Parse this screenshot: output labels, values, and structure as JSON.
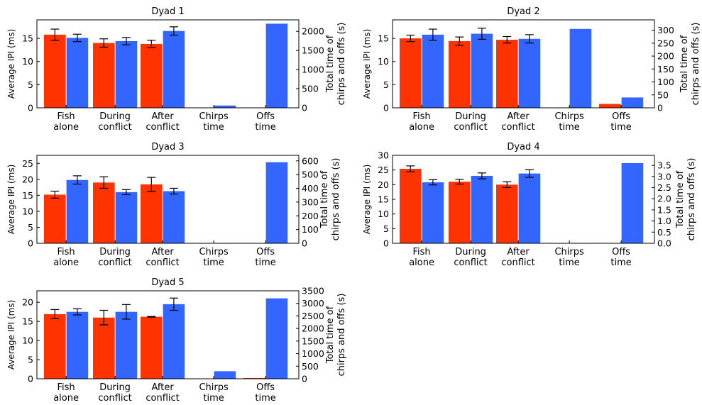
{
  "colors": {
    "fish_a": "#ff3300",
    "fish_b": "#3366ff",
    "error_bar": "#000000"
  },
  "chart_data": [
    {
      "type": "bar",
      "title": "Dyad 1",
      "categories": [
        "Fish\nalone",
        "During\nconflict",
        "After\nconflict"
      ],
      "ylabel": "Average IPI (ms)",
      "ylim": [
        0,
        19
      ],
      "yticks": [
        0,
        5,
        10,
        15
      ],
      "series": [
        {
          "values": [
            15.8,
            14.0,
            13.8
          ],
          "errors": [
            1.2,
            0.9,
            0.8
          ]
        },
        {
          "values": [
            15.1,
            14.4,
            16.6
          ],
          "errors": [
            0.8,
            0.8,
            0.9
          ]
        }
      ],
      "right_axis": {
        "ylabel": "Total time of\nchirps and offs (s)",
        "ylim": [
          0,
          2300
        ],
        "yticks": [
          0,
          500,
          1000,
          1500,
          2000
        ],
        "categories": [
          "Chirps\ntime",
          "Offs\ntime"
        ],
        "fish_a": [
          0,
          0
        ],
        "fish_b": [
          60,
          2200
        ]
      }
    },
    {
      "type": "bar",
      "title": "Dyad 2",
      "categories": [
        "Fish\nalone",
        "During\nconflict",
        "After\nconflict"
      ],
      "ylabel": "Average IPI (ms)",
      "ylim": [
        0,
        19
      ],
      "yticks": [
        0,
        5,
        10,
        15
      ],
      "series": [
        {
          "values": [
            15.0,
            14.4,
            14.7
          ],
          "errors": [
            0.7,
            0.9,
            0.7
          ]
        },
        {
          "values": [
            15.8,
            16.0,
            14.9
          ],
          "errors": [
            1.2,
            1.2,
            0.9
          ]
        }
      ],
      "right_axis": {
        "ylabel": "Total time of\nchirps and offs (s)",
        "ylim": [
          0,
          340
        ],
        "yticks": [
          0,
          50,
          100,
          150,
          200,
          250,
          300
        ],
        "categories": [
          "Chirps\ntime",
          "Offs\ntime"
        ],
        "fish_a": [
          0,
          15
        ],
        "fish_b": [
          305,
          40
        ]
      }
    },
    {
      "type": "bar",
      "title": "Dyad 3",
      "categories": [
        "Fish\nalone",
        "During\nconflict",
        "After\nconflict"
      ],
      "ylabel": "Average IPI (ms)",
      "ylim": [
        0,
        27.5
      ],
      "yticks": [
        0,
        5,
        10,
        15,
        20,
        25
      ],
      "series": [
        {
          "values": [
            15.2,
            19.0,
            18.4
          ],
          "errors": [
            1.1,
            1.8,
            2.2
          ]
        },
        {
          "values": [
            19.8,
            16.0,
            16.3
          ],
          "errors": [
            1.3,
            0.8,
            0.9
          ]
        }
      ],
      "right_axis": {
        "ylabel": "Total time of\nchirps and offs (s)",
        "ylim": [
          0,
          640
        ],
        "yticks": [
          0,
          100,
          200,
          300,
          400,
          500,
          600
        ],
        "categories": [
          "Chirps\ntime",
          "Offs\ntime"
        ],
        "fish_a": [
          0,
          2
        ],
        "fish_b": [
          1,
          590
        ]
      }
    },
    {
      "type": "bar",
      "title": "Dyad 4",
      "categories": [
        "Fish\nalone",
        "During\nconflict",
        "After\nconflict"
      ],
      "ylabel": "Average IPI (ms)",
      "ylim": [
        0,
        30
      ],
      "yticks": [
        0,
        5,
        10,
        15,
        20,
        25,
        30
      ],
      "series": [
        {
          "values": [
            25.4,
            21.0,
            20.0
          ],
          "errors": [
            1.0,
            0.8,
            1.0
          ]
        },
        {
          "values": [
            20.8,
            23.0,
            23.8
          ],
          "errors": [
            0.9,
            1.0,
            1.3
          ]
        }
      ],
      "right_axis": {
        "ylabel": "Total time of\nchirps and offs (s)",
        "ylim": [
          0,
          3.95
        ],
        "yticks": [
          "0.0",
          "0.5",
          "1.0",
          "1.5",
          "2.0",
          "2.5",
          "3.0",
          "3.5"
        ],
        "categories": [
          "Chirps\ntime",
          "Offs\ntime"
        ],
        "fish_a": [
          0,
          0
        ],
        "fish_b": [
          0,
          3.6
        ]
      }
    },
    {
      "type": "bar",
      "title": "Dyad 5",
      "categories": [
        "Fish\nalone",
        "During\nconflict",
        "After\nconflict"
      ],
      "ylabel": "Average IPI (ms)",
      "ylim": [
        0,
        23
      ],
      "yticks": [
        0,
        5,
        10,
        15,
        20
      ],
      "series": [
        {
          "values": [
            16.9,
            16.0,
            16.2
          ],
          "errors": [
            1.2,
            1.9,
            0.1
          ]
        },
        {
          "values": [
            17.5,
            17.5,
            19.5
          ],
          "errors": [
            0.8,
            1.9,
            1.6
          ]
        }
      ],
      "right_axis": {
        "ylabel": "Total time of\nchirps and offs (s)",
        "ylim": [
          0,
          3500
        ],
        "yticks": [
          0,
          500,
          1000,
          1500,
          2000,
          2500,
          3000,
          3500
        ],
        "categories": [
          "Chirps\ntime",
          "Offs\ntime"
        ],
        "fish_a": [
          0,
          30
        ],
        "fish_b": [
          300,
          3200
        ]
      }
    }
  ]
}
